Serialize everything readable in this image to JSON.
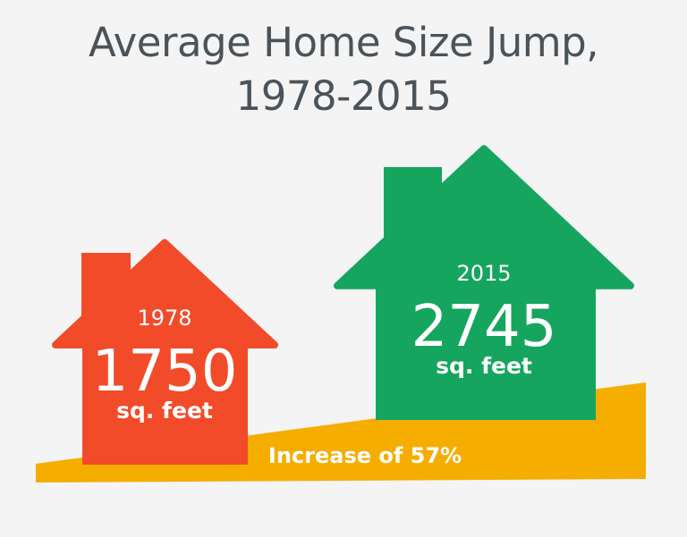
{
  "title_line1": "Average Home Size Jump,",
  "title_line2": "1978-2015",
  "chart_data": {
    "type": "bar",
    "title": "Average Home Size Jump, 1978-2015",
    "categories": [
      "1978",
      "2015"
    ],
    "values": [
      1750,
      2745
    ],
    "unit": "sq. feet",
    "colors": [
      "#f24b2a",
      "#16a55e"
    ],
    "annotation": "Increase of 57%",
    "annotation_color": "#f5ad00"
  }
}
